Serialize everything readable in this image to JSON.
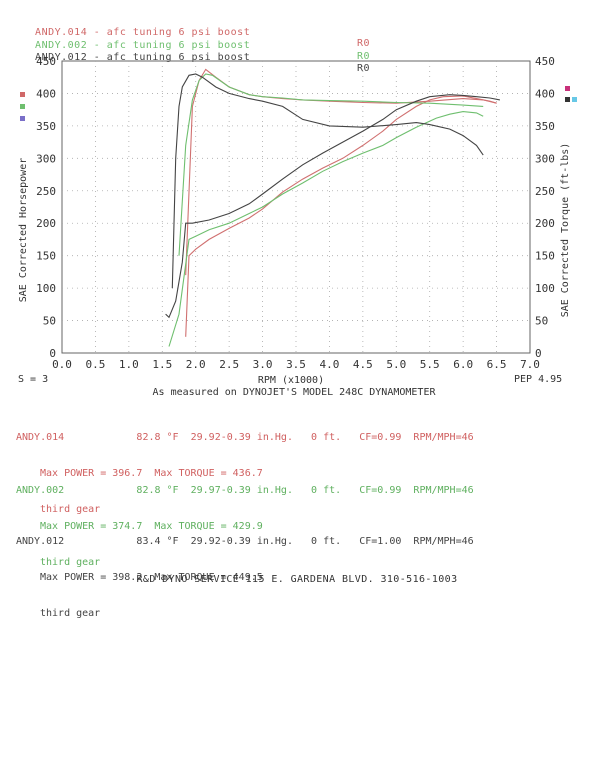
{
  "header": {
    "runs": [
      {
        "label": "ANDY.014 - afc tuning 6 psi boost",
        "code": "R0",
        "color": "#d06868"
      },
      {
        "label": "ANDY.002 - afc tuning 6 psi boost",
        "code": "R0",
        "color": "#6fbf6f"
      },
      {
        "label": "ANDY.012 - afc tuning 6 psi boost",
        "code": "R0",
        "color": "#444444"
      }
    ]
  },
  "chart_data": {
    "type": "line",
    "xlabel": "RPM (x1000)",
    "ylabel_left": "SAE Corrected Horsepower",
    "ylabel_right": "SAE Corrected Torque (ft-lbs)",
    "x_ticks": [
      "0.0",
      "0.5",
      "1.0",
      "1.5",
      "2.0",
      "2.5",
      "3.0",
      "3.5",
      "4.0",
      "4.5",
      "5.0",
      "5.5",
      "6.0",
      "6.5",
      "7.0"
    ],
    "y_ticks": [
      "0",
      "50",
      "100",
      "150",
      "200",
      "250",
      "300",
      "350",
      "400",
      "450"
    ],
    "xlim": [
      0,
      7
    ],
    "ylim": [
      0,
      450
    ],
    "smoothing": "S = 3",
    "pep": "PEP 4.95",
    "dyno_note": "As measured on DYNOJET'S MODEL 248C DYNAMOMETER",
    "series": [
      {
        "color": "#d07070",
        "kind": "power",
        "x": [
          1.85,
          1.9,
          2.0,
          2.2,
          2.5,
          2.8,
          3.0,
          3.3,
          3.6,
          3.9,
          4.2,
          4.5,
          4.8,
          5.0,
          5.3,
          5.5,
          5.7,
          6.0,
          6.2,
          6.4,
          6.5
        ],
        "y": [
          25,
          150,
          160,
          175,
          192,
          208,
          222,
          248,
          268,
          285,
          300,
          320,
          342,
          360,
          380,
          390,
          395,
          396,
          392,
          388,
          385
        ]
      },
      {
        "color": "#d07070",
        "kind": "torque",
        "x": [
          1.85,
          1.95,
          2.05,
          2.15,
          2.3,
          2.5,
          2.8,
          3.0,
          3.3,
          3.6,
          4.0,
          4.5,
          5.0,
          5.5,
          6.0,
          6.3,
          6.5
        ],
        "y": [
          120,
          380,
          420,
          437,
          425,
          410,
          398,
          395,
          392,
          390,
          388,
          386,
          385,
          388,
          392,
          390,
          385
        ]
      },
      {
        "color": "#6fbf6f",
        "kind": "power",
        "x": [
          1.6,
          1.75,
          1.9,
          2.0,
          2.2,
          2.5,
          2.8,
          3.0,
          3.3,
          3.6,
          3.9,
          4.2,
          4.5,
          4.8,
          5.0,
          5.3,
          5.6,
          5.8,
          6.0,
          6.2,
          6.3
        ],
        "y": [
          10,
          60,
          175,
          180,
          190,
          200,
          215,
          225,
          245,
          262,
          280,
          295,
          308,
          320,
          332,
          348,
          362,
          368,
          372,
          370,
          365
        ]
      },
      {
        "color": "#6fbf6f",
        "kind": "torque",
        "x": [
          1.75,
          1.85,
          1.95,
          2.05,
          2.15,
          2.25,
          2.5,
          2.8,
          3.0,
          3.3,
          3.6,
          4.0,
          4.5,
          5.0,
          5.5,
          6.0,
          6.3
        ],
        "y": [
          150,
          320,
          390,
          420,
          430,
          428,
          410,
          398,
          395,
          393,
          390,
          389,
          388,
          386,
          385,
          382,
          380
        ]
      },
      {
        "color": "#444444",
        "kind": "power",
        "x": [
          1.55,
          1.6,
          1.7,
          1.8,
          1.85,
          1.95,
          2.2,
          2.5,
          2.8,
          3.0,
          3.3,
          3.6,
          3.9,
          4.2,
          4.5,
          4.8,
          5.0,
          5.3,
          5.5,
          5.8,
          6.0,
          6.2,
          6.4,
          6.55
        ],
        "y": [
          60,
          55,
          80,
          140,
          200,
          200,
          205,
          215,
          230,
          245,
          268,
          290,
          308,
          325,
          342,
          360,
          375,
          388,
          395,
          398,
          397,
          395,
          393,
          390
        ]
      },
      {
        "color": "#444444",
        "kind": "torque",
        "x": [
          1.65,
          1.7,
          1.75,
          1.8,
          1.9,
          2.0,
          2.1,
          2.3,
          2.5,
          2.8,
          3.0,
          3.3,
          3.6,
          4.0,
          4.5,
          5.0,
          5.3,
          5.5,
          5.8,
          6.0,
          6.2,
          6.3
        ],
        "y": [
          100,
          300,
          380,
          410,
          428,
          430,
          425,
          410,
          400,
          392,
          388,
          380,
          360,
          350,
          348,
          352,
          355,
          352,
          345,
          335,
          320,
          305
        ]
      }
    ]
  },
  "runs": [
    {
      "name": "ANDY.014",
      "temp": "82.8 °F",
      "baro": "29.92-0.39 in.Hg.",
      "alt": "0 ft.",
      "cf": "CF=0.99",
      "rpm": "RPM/MPH=46",
      "max_line": "Max POWER = 396.7  Max TORQUE = 436.7",
      "gear": "third gear",
      "color": "#d06060"
    },
    {
      "name": "ANDY.002",
      "temp": "82.8 °F",
      "baro": "29.97-0.39 in.Hg.",
      "alt": "0 ft.",
      "cf": "CF=0.99",
      "rpm": "RPM/MPH=46",
      "max_line": "Max POWER = 374.7  Max TORQUE = 429.9",
      "gear": "third gear",
      "color": "#5fb05f"
    },
    {
      "name": "ANDY.012",
      "temp": "83.4 °F",
      "baro": "29.92-0.39 in.Hg.",
      "alt": "0 ft.",
      "cf": "CF=1.00",
      "rpm": "RPM/MPH=46",
      "max_line": "Max POWER = 398.2  Max TORQUE = 449.5",
      "gear": "third gear",
      "color": "#444444"
    }
  ],
  "footer": "R&D DYNO SERVICE 115 E. GARDENA BLVD. 310-516-1003"
}
